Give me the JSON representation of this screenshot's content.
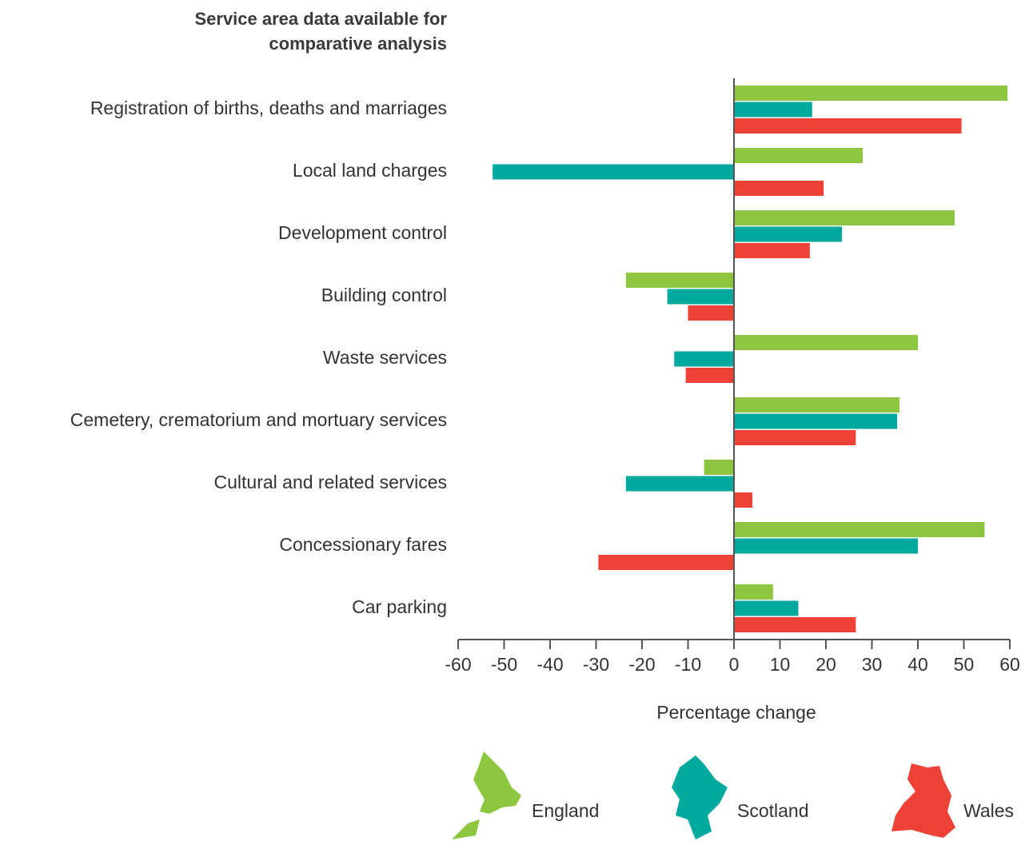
{
  "chart_data": {
    "type": "hbar",
    "title": "Service area data available for comparative analysis",
    "x_label": "Percentage change",
    "categories": [
      "Registration of births, deaths and marriages",
      "Local land charges",
      "Development control",
      "Building control",
      "Waste services",
      "Cemetery, crematorium and mortuary services",
      "Cultural and related services",
      "Concessionary fares",
      "Car parking"
    ],
    "series": [
      {
        "name": "England",
        "color": "#8dc63f",
        "values": [
          59.5,
          28,
          48,
          -23.5,
          40,
          36,
          -6.5,
          54.5,
          8.5
        ]
      },
      {
        "name": "Scotland",
        "color": "#00a99d",
        "values": [
          17,
          -52.5,
          23.5,
          -14.5,
          -13,
          35.5,
          -23.5,
          40,
          14
        ]
      },
      {
        "name": "Wales",
        "color": "#ef4136",
        "values": [
          49.5,
          19.5,
          16.5,
          -10,
          -10.5,
          26.5,
          4,
          -29.5,
          26.5
        ]
      }
    ],
    "xlim": [
      -60,
      60
    ],
    "xticks": [
      -60,
      -50,
      -40,
      -30,
      -20,
      -10,
      0,
      10,
      20,
      30,
      40,
      50,
      60
    ],
    "legend": "bottom"
  }
}
